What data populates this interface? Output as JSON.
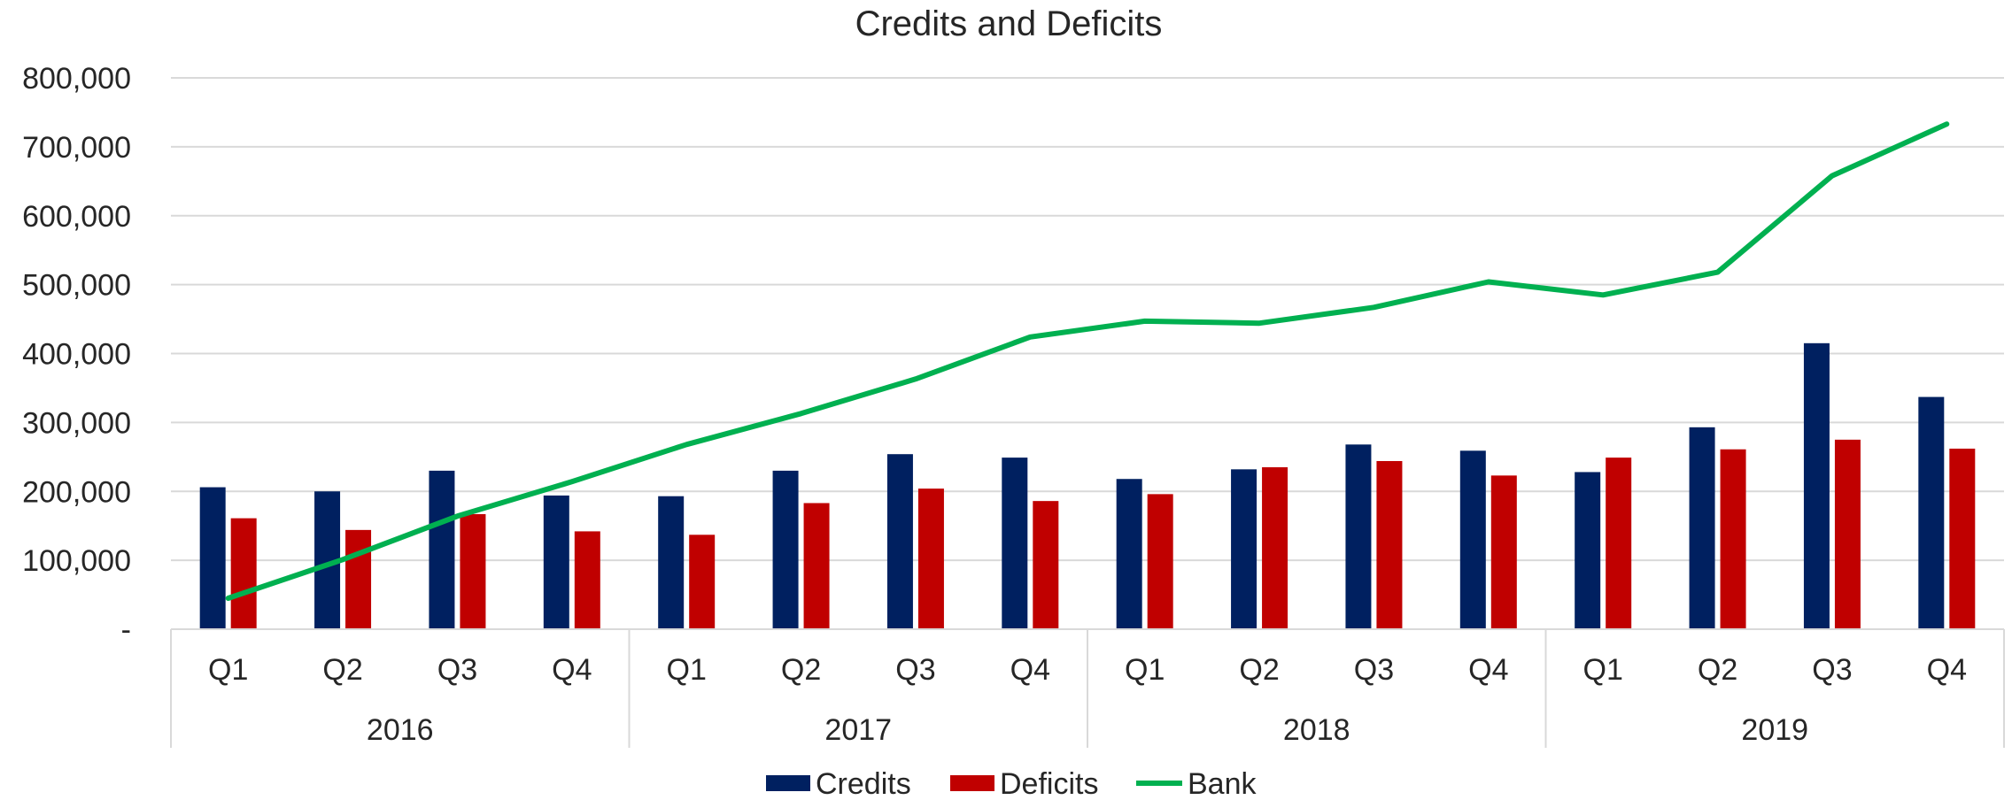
{
  "chart_data": {
    "type": "bar",
    "title": "Credits and Deficits",
    "xlabel": "",
    "ylabel": "",
    "ylim": [
      0,
      800000
    ],
    "yticks": [
      0,
      100000,
      200000,
      300000,
      400000,
      500000,
      600000,
      700000,
      800000
    ],
    "ytick_labels": [
      "-",
      "100,000",
      "200,000",
      "300,000",
      "400,000",
      "500,000",
      "600,000",
      "700,000",
      "800,000"
    ],
    "categories": [
      "Q1",
      "Q2",
      "Q3",
      "Q4",
      "Q1",
      "Q2",
      "Q3",
      "Q4",
      "Q1",
      "Q2",
      "Q3",
      "Q4",
      "Q1",
      "Q2",
      "Q3",
      "Q4"
    ],
    "groups": [
      {
        "label": "2016",
        "count": 4
      },
      {
        "label": "2017",
        "count": 4
      },
      {
        "label": "2018",
        "count": 4
      },
      {
        "label": "2019",
        "count": 4
      }
    ],
    "grid": true,
    "legend_position": "bottom",
    "series": [
      {
        "name": "Credits",
        "type": "bar",
        "color": "#002060",
        "values": [
          206000,
          200000,
          230000,
          194000,
          193000,
          230000,
          254000,
          249000,
          218000,
          232000,
          268000,
          259000,
          228000,
          293000,
          415000,
          337000
        ]
      },
      {
        "name": "Deficits",
        "type": "bar",
        "color": "#C00000",
        "values": [
          161000,
          144000,
          167000,
          142000,
          137000,
          183000,
          204000,
          186000,
          196000,
          235000,
          244000,
          223000,
          249000,
          261000,
          275000,
          262000
        ]
      },
      {
        "name": "Bank",
        "type": "line",
        "color": "#00B050",
        "values": [
          45000,
          101000,
          164000,
          214000,
          268000,
          313000,
          363000,
          424000,
          447000,
          444000,
          467000,
          504000,
          485000,
          518000,
          658000,
          733000
        ]
      }
    ]
  }
}
